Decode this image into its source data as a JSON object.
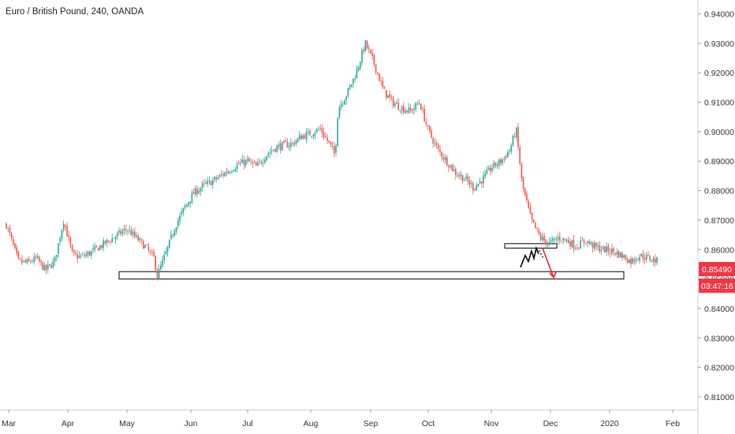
{
  "chart_data": {
    "type": "candlestick",
    "title": "Euro / British Pound, 240, OANDA",
    "y_ticks": [
      "0.94000",
      "0.93000",
      "0.92000",
      "0.91000",
      "0.90000",
      "0.89000",
      "0.88000",
      "0.87000",
      "0.86000",
      "0.85000",
      "0.84000",
      "0.83000",
      "0.82000",
      "0.81000"
    ],
    "x_ticks": [
      "Mar",
      "Apr",
      "May",
      "Jun",
      "Jul",
      "Aug",
      "Sep",
      "Oct",
      "Nov",
      "Dec",
      "2020",
      "Feb"
    ],
    "ylim": [
      0.8057,
      0.9447
    ],
    "current_price": "0.85490",
    "countdown": "03:47:16",
    "colors": {
      "up": "#26a69a",
      "down": "#ef5350",
      "badge": "#f23645",
      "line": "#000000"
    },
    "path": [
      [
        0.0,
        0.8685
      ],
      [
        0.4,
        0.856
      ],
      [
        0.7,
        0.8555
      ],
      [
        1.0,
        0.857
      ],
      [
        1.3,
        0.853
      ],
      [
        1.6,
        0.856
      ],
      [
        1.9,
        0.87
      ],
      [
        2.2,
        0.858
      ],
      [
        2.5,
        0.8575
      ],
      [
        2.8,
        0.859
      ],
      [
        3.1,
        0.861
      ],
      [
        3.4,
        0.863
      ],
      [
        3.7,
        0.865
      ],
      [
        4.0,
        0.867
      ],
      [
        4.3,
        0.864
      ],
      [
        4.6,
        0.861
      ],
      [
        4.9,
        0.857
      ],
      [
        5.0,
        0.851
      ],
      [
        5.3,
        0.859
      ],
      [
        5.6,
        0.868
      ],
      [
        5.9,
        0.874
      ],
      [
        6.2,
        0.879
      ],
      [
        6.5,
        0.8815
      ],
      [
        6.8,
        0.883
      ],
      [
        7.1,
        0.885
      ],
      [
        7.4,
        0.887
      ],
      [
        7.7,
        0.889
      ],
      [
        8.0,
        0.89
      ],
      [
        8.3,
        0.888
      ],
      [
        8.6,
        0.892
      ],
      [
        8.9,
        0.8945
      ],
      [
        9.2,
        0.8955
      ],
      [
        9.5,
        0.896
      ],
      [
        9.8,
        0.8985
      ],
      [
        10.1,
        0.8995
      ],
      [
        10.4,
        0.901
      ],
      [
        10.7,
        0.896
      ],
      [
        10.9,
        0.892
      ],
      [
        11.0,
        0.908
      ],
      [
        11.3,
        0.913
      ],
      [
        11.6,
        0.92
      ],
      [
        11.9,
        0.93
      ],
      [
        12.2,
        0.923
      ],
      [
        12.5,
        0.914
      ],
      [
        12.8,
        0.91
      ],
      [
        13.1,
        0.908
      ],
      [
        13.4,
        0.907
      ],
      [
        13.7,
        0.91
      ],
      [
        14.0,
        0.9
      ],
      [
        14.3,
        0.894
      ],
      [
        14.6,
        0.89
      ],
      [
        14.9,
        0.886
      ],
      [
        15.2,
        0.884
      ],
      [
        15.5,
        0.881
      ],
      [
        15.8,
        0.884
      ],
      [
        16.1,
        0.888
      ],
      [
        16.4,
        0.89
      ],
      [
        16.7,
        0.894
      ],
      [
        16.9,
        0.901
      ],
      [
        17.1,
        0.882
      ],
      [
        17.4,
        0.87
      ],
      [
        17.7,
        0.864
      ],
      [
        18.0,
        0.862
      ],
      [
        18.3,
        0.864
      ],
      [
        18.6,
        0.863
      ],
      [
        18.9,
        0.861
      ],
      [
        19.2,
        0.863
      ],
      [
        19.5,
        0.861
      ],
      [
        19.8,
        0.86
      ],
      [
        20.1,
        0.8595
      ],
      [
        20.4,
        0.858
      ],
      [
        20.7,
        0.856
      ],
      [
        21.0,
        0.858
      ],
      [
        21.3,
        0.857
      ],
      [
        21.6,
        0.856
      ]
    ],
    "drawings": {
      "support_zone": {
        "x_start": 4.0,
        "x_end": 24.0,
        "y_low": 0.85,
        "y_high": 0.8525
      },
      "resistance_zone": {
        "x_start": 20.1,
        "x_end": 22.0,
        "y_low": 0.8605,
        "y_high": 0.862
      },
      "zigzag": [
        [
          20.7,
          0.854
        ],
        [
          20.85,
          0.858
        ],
        [
          20.95,
          0.856
        ],
        [
          21.1,
          0.8595
        ],
        [
          21.25,
          0.857
        ],
        [
          21.4,
          0.8605
        ],
        [
          21.5,
          0.8585
        ]
      ],
      "projection_dots": [
        [
          21.55,
          0.8595
        ],
        [
          21.62,
          0.8585
        ],
        [
          21.68,
          0.8575
        ]
      ],
      "arrow": {
        "from": [
          21.6,
          0.8605
        ],
        "to": [
          21.95,
          0.8505
        ]
      }
    }
  }
}
